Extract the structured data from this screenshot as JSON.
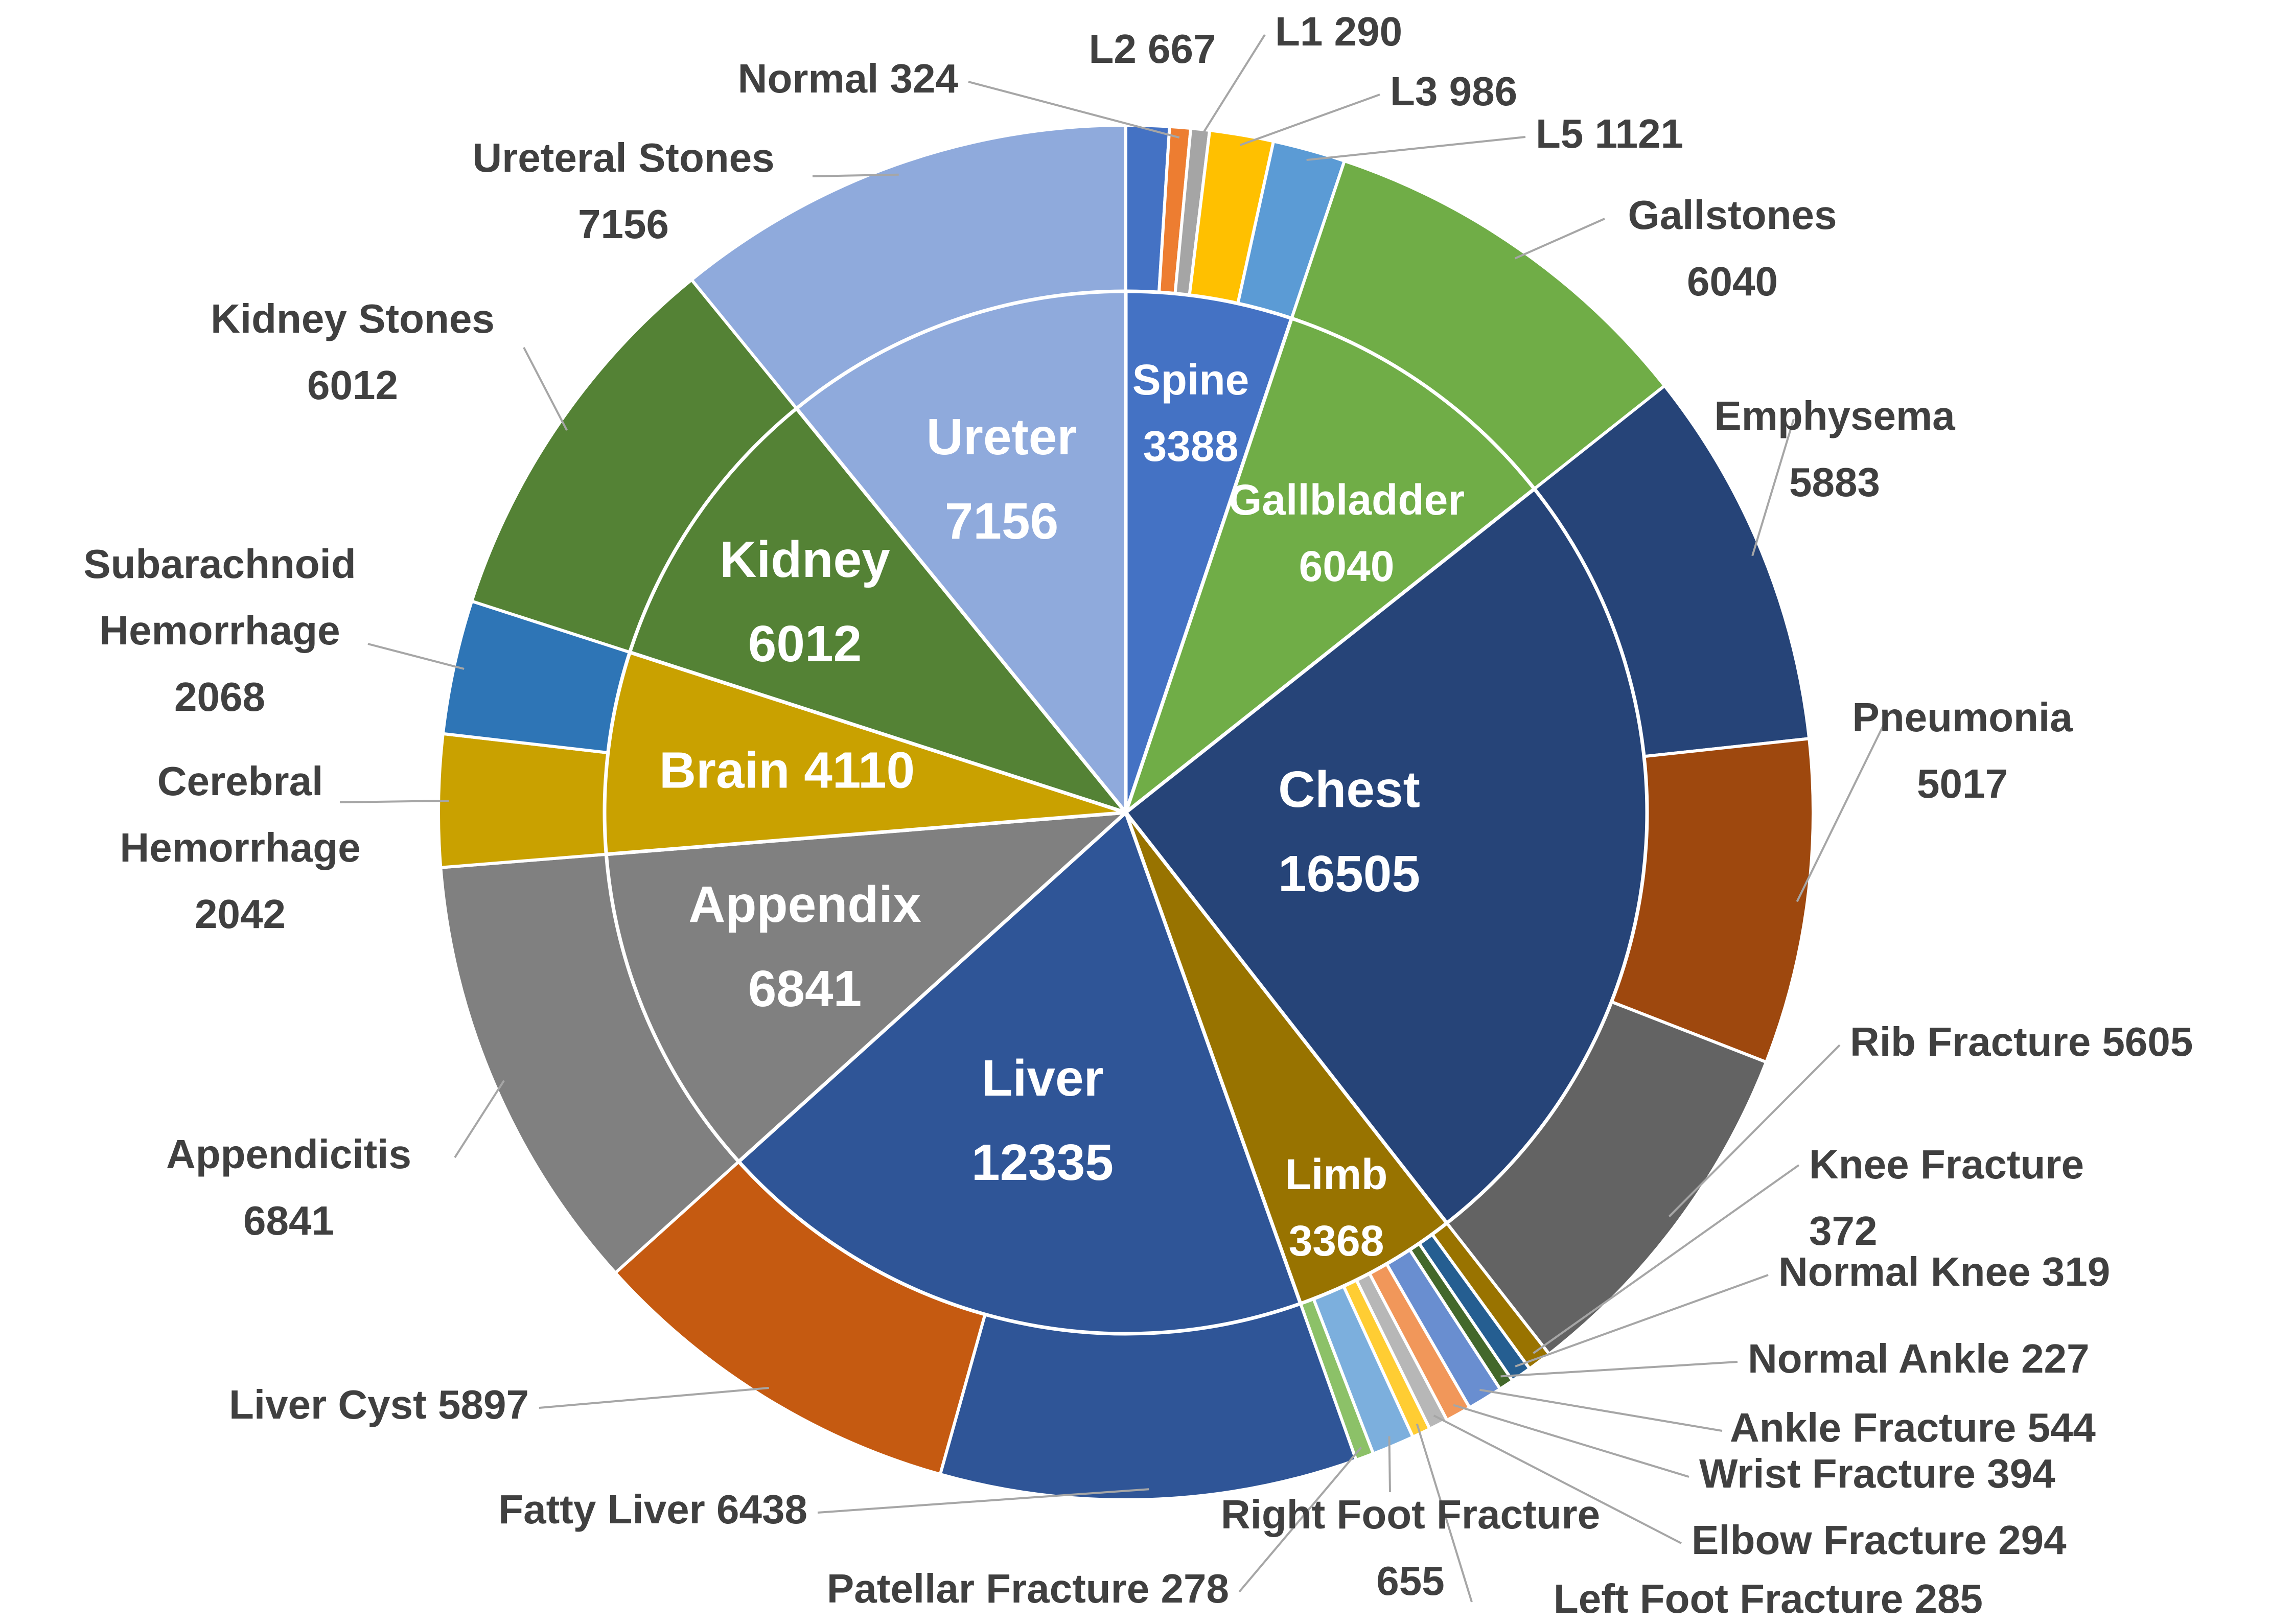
{
  "chart_data": {
    "type": "pie",
    "subtype": "sunburst-two-ring",
    "title": "",
    "inner_ring": [
      {
        "name": "Spine",
        "value": 3388,
        "color": "#4472C4",
        "label": [
          "Spine",
          "3388"
        ]
      },
      {
        "name": "Gallbladder",
        "value": 6040,
        "color": "#70AD47",
        "label": [
          "Gallbladder",
          "6040"
        ]
      },
      {
        "name": "Chest",
        "value": 16505,
        "color": "#264478",
        "label": [
          "Chest",
          "16505"
        ]
      },
      {
        "name": "Limb",
        "value": 3368,
        "color": "#987300",
        "label": [
          "Limb",
          "3368"
        ]
      },
      {
        "name": "Liver",
        "value": 12335,
        "color": "#2F5597",
        "label": [
          "Liver",
          "12335"
        ]
      },
      {
        "name": "Appendix",
        "value": 6841,
        "color": "#808080",
        "label": [
          "Appendix",
          "6841"
        ]
      },
      {
        "name": "Brain",
        "value": 4110,
        "color": "#C9A100",
        "label": [
          "Brain 4110"
        ]
      },
      {
        "name": "Kidney",
        "value": 6012,
        "color": "#548235",
        "label": [
          "Kidney",
          "6012"
        ]
      },
      {
        "name": "Ureter",
        "value": 7156,
        "color": "#8FAADC",
        "label": [
          "Ureter",
          "7156"
        ]
      }
    ],
    "outer_ring": [
      {
        "name": "L2",
        "value": 667,
        "color": "#4472C4",
        "label": [
          "L2  667"
        ],
        "label_pos": "top"
      },
      {
        "name": "Normal",
        "value": 324,
        "color": "#ED7D31",
        "label": [
          "Normal 324"
        ],
        "label_pos": "top-left"
      },
      {
        "name": "L1",
        "value": 290,
        "color": "#A5A5A5",
        "label": [
          "L1 290"
        ],
        "label_pos": "top-right"
      },
      {
        "name": "L3",
        "value": 986,
        "color": "#FFC000",
        "label": [
          "L3 986"
        ],
        "label_pos": "top-right"
      },
      {
        "name": "L5",
        "value": 1121,
        "color": "#5B9BD5",
        "label": [
          "L5 1121"
        ],
        "label_pos": "top-right"
      },
      {
        "name": "Gallstones",
        "value": 6040,
        "color": "#70AD47",
        "label": [
          "Gallstones",
          "6040"
        ],
        "label_pos": "right"
      },
      {
        "name": "Emphysema",
        "value": 5883,
        "color": "#264478",
        "label": [
          "Emphysema",
          "5883"
        ],
        "label_pos": "right"
      },
      {
        "name": "Pneumonia",
        "value": 5017,
        "color": "#9E480E",
        "label": [
          "Pneumonia",
          "5017"
        ],
        "label_pos": "right"
      },
      {
        "name": "Rib Fracture",
        "value": 5605,
        "color": "#636363",
        "label": [
          "Rib Fracture 5605"
        ],
        "label_pos": "right"
      },
      {
        "name": "Knee Fracture",
        "value": 372,
        "color": "#997300",
        "label": [
          "Knee Fracture",
          "372"
        ],
        "label_pos": "right"
      },
      {
        "name": "Normal Knee",
        "value": 319,
        "color": "#255E91",
        "label": [
          "Normal Knee 319"
        ],
        "label_pos": "right"
      },
      {
        "name": "Normal Ankle",
        "value": 227,
        "color": "#43682B",
        "label": [
          "Normal Ankle 227"
        ],
        "label_pos": "right"
      },
      {
        "name": "Ankle Fracture",
        "value": 544,
        "color": "#698ED0",
        "label": [
          "Ankle Fracture 544"
        ],
        "label_pos": "right"
      },
      {
        "name": "Wrist Fracture",
        "value": 394,
        "color": "#F1975A",
        "label": [
          "Wrist Fracture 394"
        ],
        "label_pos": "right"
      },
      {
        "name": "Elbow Fracture",
        "value": 294,
        "color": "#B7B7B7",
        "label": [
          "Elbow Fracture 294"
        ],
        "label_pos": "right"
      },
      {
        "name": "Left Foot Fracture",
        "value": 285,
        "color": "#FFCD33",
        "label": [
          "Left Foot Fracture 285"
        ],
        "label_pos": "bottom"
      },
      {
        "name": "Right Foot Fracture",
        "value": 655,
        "color": "#7CAFDD",
        "label": [
          "Right Foot Fracture",
          "655"
        ],
        "label_pos": "bottom"
      },
      {
        "name": "Patellar Fracture",
        "value": 278,
        "color": "#8CC168",
        "label": [
          "Patellar Fracture 278"
        ],
        "label_pos": "bottom"
      },
      {
        "name": "Fatty Liver",
        "value": 6438,
        "color": "#2F5597",
        "label": [
          "Fatty Liver 6438"
        ],
        "label_pos": "bottom-left"
      },
      {
        "name": "Liver Cyst",
        "value": 5897,
        "color": "#C55A11",
        "label": [
          "Liver Cyst 5897"
        ],
        "label_pos": "left"
      },
      {
        "name": "Appendicitis",
        "value": 6841,
        "color": "#808080",
        "label": [
          "Appendicitis",
          "6841"
        ],
        "label_pos": "left"
      },
      {
        "name": "Cerebral Hemorrhage",
        "value": 2042,
        "color": "#C9A100",
        "label": [
          "Cerebral",
          "Hemorrhage",
          "2042"
        ],
        "label_pos": "left"
      },
      {
        "name": "Subarachnoid Hemorrhage",
        "value": 2068,
        "color": "#2E75B6",
        "label": [
          "Subarachnoid",
          "Hemorrhage",
          "2068"
        ],
        "label_pos": "left"
      },
      {
        "name": "Kidney Stones",
        "value": 6012,
        "color": "#548235",
        "label": [
          "Kidney Stones",
          "6012"
        ],
        "label_pos": "left"
      },
      {
        "name": "Ureteral Stones",
        "value": 7156,
        "color": "#8FAADC",
        "label": [
          "Ureteral Stones",
          "7156"
        ],
        "label_pos": "top-left"
      }
    ],
    "grid": false,
    "legend": "none"
  }
}
